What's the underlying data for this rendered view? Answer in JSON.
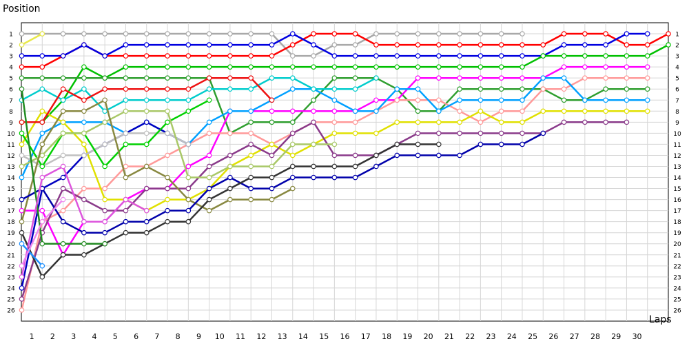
{
  "chart_data": {
    "type": "line",
    "xlabel": "Laps",
    "ylabel": "Position",
    "x_ticks": [
      "1",
      "2",
      "3",
      "4",
      "5",
      "6",
      "7",
      "8",
      "9",
      "10",
      "11",
      "12",
      "13",
      "14",
      "15",
      "16",
      "17",
      "18",
      "19",
      "20",
      "21",
      "22",
      "23",
      "24",
      "25",
      "26",
      "27",
      "28",
      "29",
      "30"
    ],
    "y_ticks": [
      "1",
      "2",
      "3",
      "4",
      "5",
      "6",
      "7",
      "8",
      "9",
      "10",
      "11",
      "12",
      "13",
      "14",
      "15",
      "16",
      "17",
      "18",
      "19",
      "20",
      "21",
      "22",
      "23",
      "24",
      "25",
      "26"
    ],
    "xlim": [
      0,
      31
    ],
    "ylim": [
      26,
      1
    ],
    "grid": true,
    "legend": "none",
    "series": [
      {
        "color": "#a9a9a9",
        "values": [
          1,
          1,
          1,
          1,
          1,
          1,
          1,
          1,
          1,
          1,
          1,
          1,
          1,
          3,
          3,
          2,
          2,
          1,
          1,
          1,
          1,
          1,
          1,
          1,
          1
        ]
      },
      {
        "color": "#e8e84a",
        "values": [
          2,
          1
        ]
      },
      {
        "color": "#ff0000",
        "values": [
          4,
          4,
          3,
          2,
          3,
          3,
          3,
          3,
          3,
          3,
          3,
          3,
          3,
          2,
          1,
          1,
          1,
          2,
          2,
          2,
          2,
          2,
          2,
          2,
          2,
          2,
          1,
          1,
          1,
          2,
          2,
          1
        ]
      },
      {
        "color": "#0000e0",
        "values": [
          3,
          3,
          3,
          2,
          3,
          2,
          2,
          2,
          2,
          2,
          2,
          2,
          2,
          1,
          2,
          3,
          3,
          3,
          3,
          3,
          3,
          3,
          3,
          3,
          3,
          3,
          2,
          2,
          2,
          1,
          1
        ]
      },
      {
        "color": "#00c000",
        "values": [
          9,
          9,
          7,
          4,
          5,
          4,
          4,
          4,
          4,
          4,
          4,
          4,
          4,
          4,
          4,
          4,
          4,
          4,
          4,
          4,
          4,
          4,
          4,
          4,
          4,
          3,
          3,
          3,
          3,
          3,
          3,
          2
        ]
      },
      {
        "color": "#2e9e2e",
        "values": [
          5,
          5,
          5,
          5,
          5,
          5,
          5,
          5,
          5,
          5,
          10,
          9,
          9,
          9,
          7,
          5,
          5,
          5,
          6,
          8,
          8,
          6,
          6,
          6,
          6,
          6,
          7,
          7,
          6,
          6,
          6
        ]
      },
      {
        "color": "#ff00ff",
        "values": [
          17,
          17,
          21,
          18,
          18,
          16,
          15,
          15,
          13,
          12,
          8,
          8,
          8,
          8,
          8,
          8,
          8,
          7,
          7,
          5,
          5,
          5,
          5,
          5,
          5,
          5,
          4,
          4,
          4,
          4,
          4
        ]
      },
      {
        "color": "#ff9999",
        "values": [
          26,
          18,
          17,
          15,
          15,
          13,
          13,
          12,
          11,
          10,
          10,
          10,
          11,
          10,
          9,
          9,
          9,
          8,
          7,
          7,
          7,
          8,
          9,
          8,
          8,
          6,
          6,
          5,
          5,
          5,
          5
        ]
      },
      {
        "color": "#00a0ff",
        "values": [
          14,
          10,
          9,
          9,
          9,
          10,
          9,
          10,
          11,
          9,
          8,
          8,
          7,
          6,
          6,
          7,
          8,
          8,
          6,
          6,
          8,
          7,
          7,
          7,
          7,
          5,
          5,
          7,
          7,
          7,
          7
        ]
      },
      {
        "color": "#e0e000",
        "values": [
          11,
          8,
          9,
          11,
          16,
          16,
          17,
          16,
          16,
          15,
          13,
          12,
          11,
          12,
          11,
          10,
          10,
          10,
          9,
          9,
          9,
          9,
          8,
          9,
          9,
          8,
          8,
          8,
          8,
          8,
          8
        ]
      },
      {
        "color": "#8a3a8a",
        "values": [
          25,
          19,
          15,
          16,
          17,
          17,
          15,
          15,
          15,
          13,
          12,
          11,
          12,
          10,
          9,
          12,
          12,
          12,
          11,
          10,
          10,
          10,
          10,
          10,
          10,
          10,
          9,
          9,
          9,
          9
        ]
      },
      {
        "color": "#0000c0",
        "values": [
          24,
          15,
          14,
          12,
          11,
          10,
          9,
          10,
          11
        ]
      },
      {
        "color": "#c0c0c0",
        "values": [
          12,
          13,
          12,
          12,
          11,
          10,
          10,
          10,
          11
        ]
      },
      {
        "color": "#00d000",
        "values": [
          10,
          13,
          10,
          10,
          13,
          11,
          11,
          9,
          8,
          7
        ]
      },
      {
        "color": "#00cccc",
        "values": [
          7,
          6,
          7,
          6,
          8,
          7,
          7,
          7,
          7,
          6,
          6,
          6,
          5,
          5,
          6,
          6,
          6,
          5
        ]
      },
      {
        "color": "#ee1111",
        "values": [
          9,
          9,
          6,
          7,
          6,
          6,
          6,
          6,
          6,
          5,
          5,
          5,
          7
        ]
      },
      {
        "color": "#a9c868",
        "values": [
          13,
          12,
          10,
          10,
          9,
          8,
          8,
          8,
          14,
          14,
          13,
          13,
          13,
          11,
          11,
          11
        ]
      },
      {
        "color": "#888840",
        "values": [
          18,
          11,
          8,
          8,
          7,
          14,
          13,
          14,
          16,
          17,
          16,
          16,
          16,
          15
        ]
      },
      {
        "color": "#0000aa",
        "values": [
          16,
          15,
          18,
          19,
          19,
          18,
          18,
          17,
          17,
          15,
          14,
          15,
          15,
          14,
          14,
          14,
          14,
          13,
          12,
          12,
          12,
          12,
          11,
          11,
          11,
          10
        ]
      },
      {
        "color": "#333333",
        "values": [
          19,
          23,
          21,
          21,
          20,
          19,
          19,
          18,
          18,
          16,
          15,
          14,
          14,
          13,
          13,
          13,
          13,
          12,
          11,
          11,
          11
        ]
      },
      {
        "color": "#228b22",
        "values": [
          6,
          20,
          20,
          20,
          20
        ]
      },
      {
        "color": "#dd55dd",
        "values": [
          23,
          14,
          13,
          18,
          18,
          16,
          17
        ]
      },
      {
        "color": "#1e90ff",
        "values": [
          20,
          22
        ]
      },
      {
        "color": "#ee88ee",
        "values": [
          22,
          18,
          16
        ]
      }
    ]
  }
}
